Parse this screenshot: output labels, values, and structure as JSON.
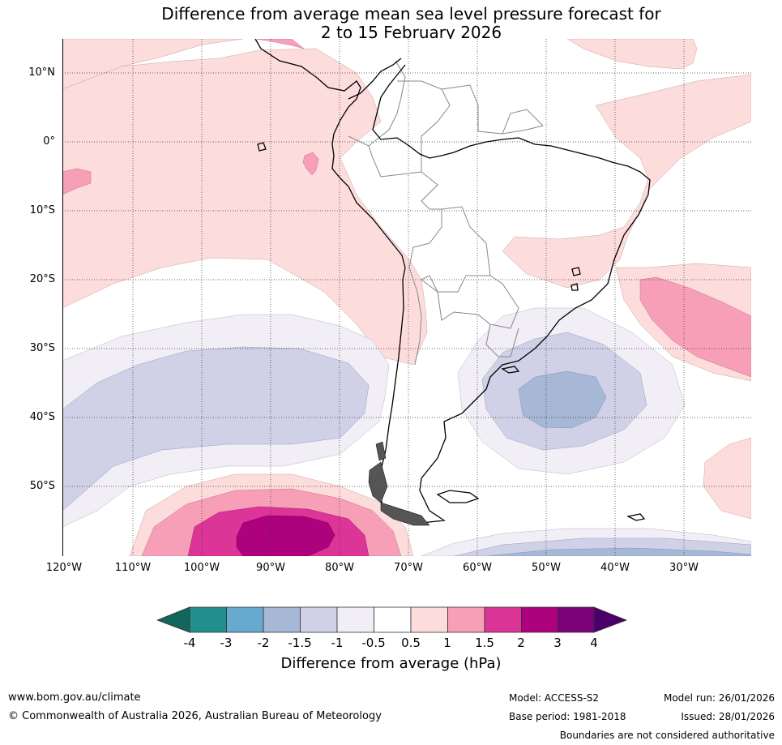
{
  "title": {
    "line1": "Difference from average mean sea level pressure forecast for",
    "line2": "2 to 15 February 2026"
  },
  "latitude_labels": [
    "10°N",
    "0°",
    "10°S",
    "20°S",
    "30°S",
    "40°S",
    "50°S"
  ],
  "longitude_labels": [
    "120°W",
    "110°W",
    "100°W",
    "90°W",
    "80°W",
    "70°W",
    "60°W",
    "50°W",
    "40°W",
    "30°W"
  ],
  "colorbar": {
    "ticks": [
      "-4",
      "-3",
      "-2",
      "-1.5",
      "-1",
      "-0.5",
      "0.5",
      "1",
      "1.5",
      "2",
      "3",
      "4"
    ],
    "colors": [
      "#13665b",
      "#21908d",
      "#67a9cf",
      "#a6b8d6",
      "#d0d1e6",
      "#f1eef6",
      "#ffffff",
      "#fddcdc",
      "#f89fb8",
      "#dd3497",
      "#ae017e",
      "#7a0177",
      "#49006a"
    ],
    "title": "Difference from average (hPa)"
  },
  "footer": {
    "website": "www.bom.gov.au/climate",
    "copyright": "© Commonwealth of Australia 2026, Australian Bureau of Meteorology",
    "model": "Model: ACCESS-S2",
    "base_period": "Base period: 1981-2018",
    "model_run": "Model run: 26/01/2026",
    "issued": "Issued: 28/01/2026",
    "disclaimer": "Boundaries are not considered authoritative"
  }
}
